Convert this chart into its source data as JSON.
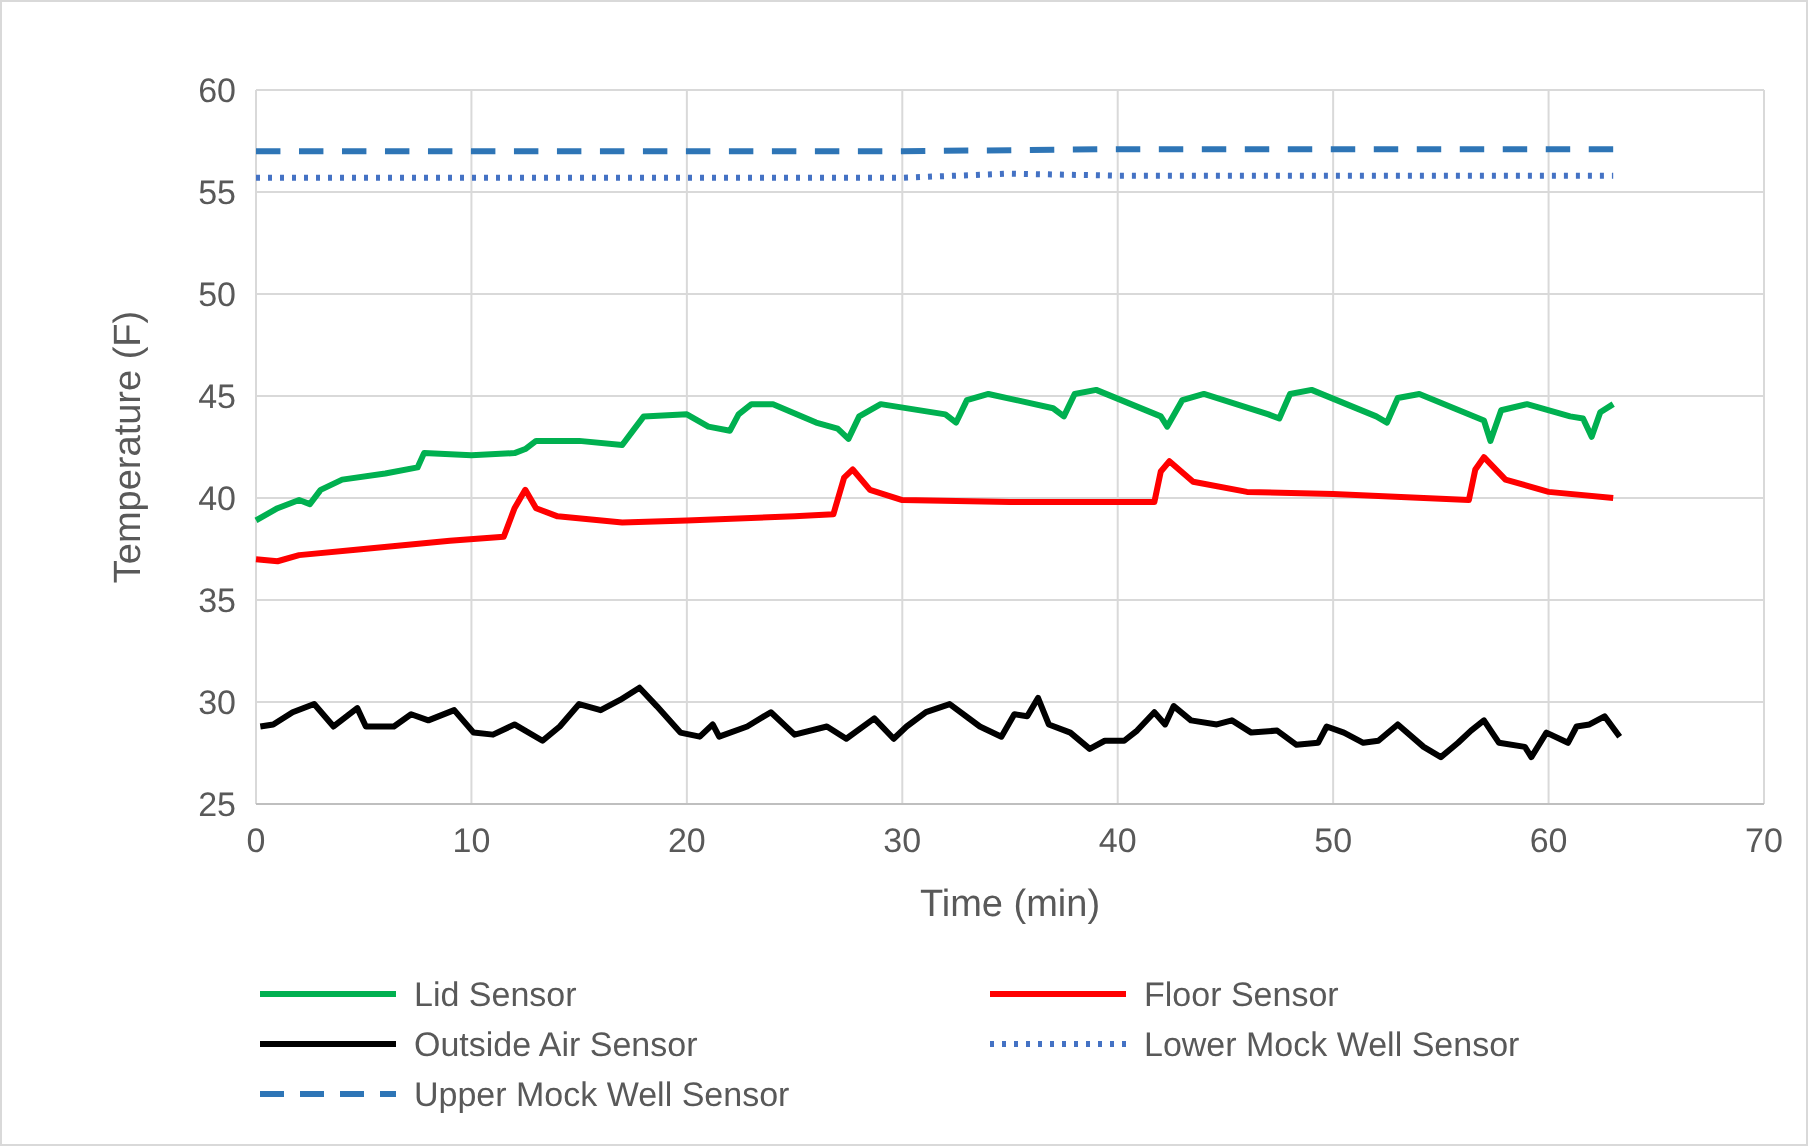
{
  "chart_data": {
    "type": "line",
    "xlabel": "Time (min)",
    "ylabel": "Temperature (F)",
    "xlim": [
      0,
      70
    ],
    "xticks": [
      0,
      10,
      20,
      30,
      40,
      50,
      60,
      70
    ],
    "ylim": [
      25,
      60
    ],
    "yticks": [
      25,
      30,
      35,
      40,
      45,
      50,
      55,
      60
    ],
    "grid": true,
    "legend": "bottom",
    "marker": "none",
    "series": [
      {
        "name": "Lid Sensor",
        "color": "#00b050",
        "line_style": "solid",
        "x": [
          0,
          1,
          2,
          2.5,
          3,
          4,
          6,
          7.5,
          7.8,
          10,
          12,
          12.5,
          13,
          15,
          17,
          17.5,
          18,
          20,
          21,
          22,
          22.4,
          23,
          24,
          26,
          27,
          27.5,
          28,
          29,
          32,
          32.5,
          33,
          34,
          37,
          37.5,
          38,
          39,
          42,
          42.3,
          43,
          44,
          47,
          47.5,
          48,
          49,
          52,
          52.5,
          53,
          54,
          57,
          57.3,
          57.8,
          59,
          61,
          61.6,
          62,
          62.4,
          63
        ],
        "values": [
          38.9,
          39.5,
          39.9,
          39.7,
          40.4,
          40.9,
          41.2,
          41.5,
          42.2,
          42.1,
          42.2,
          42.4,
          42.8,
          42.8,
          42.6,
          43.3,
          44,
          44.1,
          43.5,
          43.3,
          44.1,
          44.6,
          44.6,
          43.7,
          43.4,
          42.9,
          44,
          44.6,
          44.1,
          43.7,
          44.8,
          45.1,
          44.4,
          44,
          45.1,
          45.3,
          44,
          43.5,
          44.8,
          45.1,
          44.1,
          43.9,
          45.1,
          45.3,
          44,
          43.7,
          44.9,
          45.1,
          43.8,
          42.8,
          44.3,
          44.6,
          44,
          43.9,
          43,
          44.2,
          44.6
        ]
      },
      {
        "name": "Floor Sensor",
        "color": "#ff0000",
        "line_style": "solid",
        "x": [
          0,
          1,
          2,
          5,
          9,
          11.5,
          12,
          12.5,
          13,
          14,
          17,
          20,
          25,
          26.8,
          27.3,
          27.7,
          28.5,
          30,
          35,
          41.7,
          42,
          42.4,
          43.5,
          46,
          50,
          56.3,
          56.6,
          57,
          58,
          60,
          63
        ],
        "values": [
          37,
          36.9,
          37.2,
          37.5,
          37.9,
          38.1,
          39.5,
          40.4,
          39.5,
          39.1,
          38.8,
          38.9,
          39.1,
          39.2,
          41,
          41.4,
          40.4,
          39.9,
          39.8,
          39.8,
          41.3,
          41.8,
          40.8,
          40.3,
          40.2,
          39.9,
          41.4,
          42,
          40.9,
          40.3,
          40
        ]
      },
      {
        "name": "Outside Air Sensor",
        "color": "#000000",
        "line_style": "solid",
        "x": [
          0.2,
          0.8,
          1.7,
          2.7,
          3.6,
          4.7,
          5.1,
          6.4,
          7.2,
          8,
          9.2,
          10.1,
          11,
          12,
          13.3,
          14.1,
          15,
          16,
          16.9,
          17.8,
          18.6,
          19.7,
          20.6,
          21.2,
          21.5,
          22.8,
          23.9,
          25,
          26.5,
          27.4,
          28.7,
          29.6,
          30.2,
          31.1,
          32.2,
          33.6,
          34.6,
          35.2,
          35.8,
          36.3,
          36.8,
          37.8,
          38.7,
          39.4,
          40.3,
          40.9,
          41.7,
          42.2,
          42.6,
          43.4,
          44.6,
          45.3,
          46.2,
          47.4,
          48.3,
          49.3,
          49.7,
          50.5,
          51.4,
          52.1,
          53,
          54.2,
          55,
          55.8,
          56.4,
          57,
          57.7,
          58.9,
          59.2,
          59.9,
          60.9,
          61.3,
          61.9,
          62.6,
          63.3
        ],
        "values": [
          28.8,
          28.9,
          29.5,
          29.9,
          28.8,
          29.7,
          28.8,
          28.8,
          29.4,
          29.1,
          29.6,
          28.5,
          28.4,
          28.9,
          28.1,
          28.8,
          29.9,
          29.6,
          30.1,
          30.7,
          29.8,
          28.5,
          28.3,
          28.9,
          28.3,
          28.8,
          29.5,
          28.4,
          28.8,
          28.2,
          29.2,
          28.2,
          28.8,
          29.5,
          29.9,
          28.8,
          28.3,
          29.4,
          29.3,
          30.2,
          28.9,
          28.5,
          27.7,
          28.1,
          28.1,
          28.6,
          29.5,
          28.9,
          29.8,
          29.1,
          28.9,
          29.1,
          28.5,
          28.6,
          27.9,
          28,
          28.8,
          28.5,
          28,
          28.1,
          28.9,
          27.8,
          27.3,
          28,
          28.6,
          29.1,
          28,
          27.8,
          27.3,
          28.5,
          28,
          28.8,
          28.9,
          29.3,
          28.3
        ]
      },
      {
        "name": "Lower Mock Well Sensor",
        "color": "#4472c4",
        "line_style": "dotted",
        "x": [
          0,
          30,
          35,
          40,
          63
        ],
        "values": [
          55.7,
          55.7,
          55.9,
          55.8,
          55.8
        ]
      },
      {
        "name": "Upper Mock Well Sensor",
        "color": "#2e75b6",
        "line_style": "dashed",
        "x": [
          0,
          30,
          40,
          63
        ],
        "values": [
          57,
          57,
          57.1,
          57.1
        ]
      }
    ]
  }
}
